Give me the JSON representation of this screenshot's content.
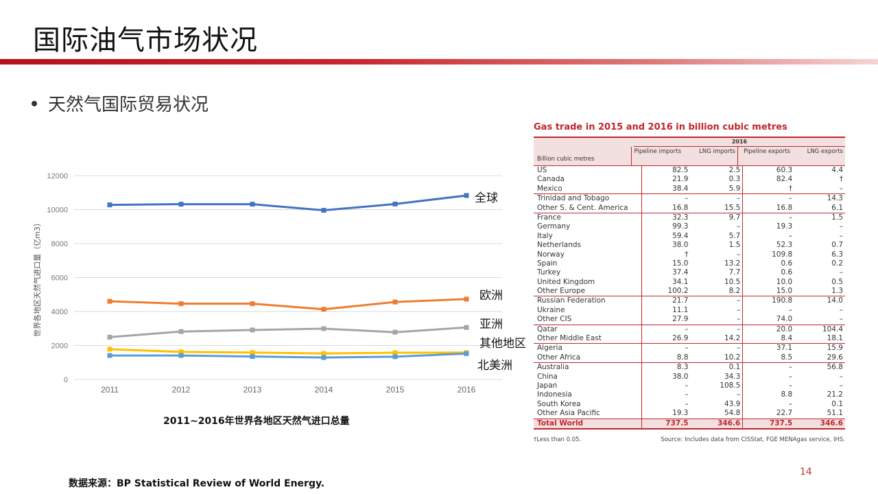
{
  "header": {
    "title": "国际油气市场状况"
  },
  "bullet": {
    "text": "天然气国际贸易状况"
  },
  "chart_caption": "2011~2016年世界各地区天然气进口总量",
  "source": "数据来源：BP Statistical Review of World Energy.",
  "page_number": "14",
  "chart_data": {
    "type": "line",
    "title": "2011~2016年世界各地区天然气进口总量",
    "ylabel": "世界各地区天然气进口量（亿m3）",
    "xlabel": "",
    "x": [
      "2011",
      "2012",
      "2013",
      "2014",
      "2015",
      "2016"
    ],
    "ylim": [
      0,
      12000
    ],
    "yticks": [
      0,
      2000,
      4000,
      6000,
      8000,
      10000,
      12000
    ],
    "grid": true,
    "series": [
      {
        "name": "全球",
        "color": "#4472c4",
        "values": [
          10280,
          10320,
          10320,
          9960,
          10330,
          10830
        ]
      },
      {
        "name": "欧洲",
        "color": "#ed7d31",
        "values": [
          4600,
          4460,
          4460,
          4130,
          4560,
          4730
        ]
      },
      {
        "name": "亚洲",
        "color": "#a5a5a5",
        "values": [
          2490,
          2820,
          2910,
          2990,
          2780,
          3060
        ]
      },
      {
        "name": "其他地区",
        "color": "#ffc000",
        "values": [
          1780,
          1620,
          1580,
          1530,
          1570,
          1580
        ]
      },
      {
        "name": "北美洲",
        "color": "#5b9bd5",
        "values": [
          1410,
          1410,
          1350,
          1290,
          1340,
          1520
        ]
      }
    ]
  },
  "table": {
    "title": "Gas trade in 2015 and 2016 in billion cubic metres",
    "year": "2016",
    "row_header": "Billion cubic metres",
    "columns": [
      "Pipeline imports",
      "LNG imports",
      "Pipeline exports",
      "LNG exports"
    ],
    "groups": [
      [
        [
          "US",
          "82.5",
          "2.5",
          "60.3",
          "4.4"
        ],
        [
          "Canada",
          "21.9",
          "0.3",
          "82.4",
          "†"
        ],
        [
          "Mexico",
          "38.4",
          "5.9",
          "†",
          "–"
        ]
      ],
      [
        [
          "Trinidad and Tobago",
          "–",
          "–",
          "–",
          "14.3"
        ],
        [
          "Other S. & Cent. America",
          "16.8",
          "15.5",
          "16.8",
          "6.1"
        ]
      ],
      [
        [
          "France",
          "32.3",
          "9.7",
          "–",
          "1.5"
        ],
        [
          "Germany",
          "99.3",
          "–",
          "19.3",
          "–"
        ],
        [
          "Italy",
          "59.4",
          "5.7",
          "–",
          "–"
        ],
        [
          "Netherlands",
          "38.0",
          "1.5",
          "52.3",
          "0.7"
        ],
        [
          "Norway",
          "†",
          "–",
          "109.8",
          "6.3"
        ],
        [
          "Spain",
          "15.0",
          "13.2",
          "0.6",
          "0.2"
        ],
        [
          "Turkey",
          "37.4",
          "7.7",
          "0.6",
          "–"
        ],
        [
          "United Kingdom",
          "34.1",
          "10.5",
          "10.0",
          "0.5"
        ],
        [
          "Other Europe",
          "100.2",
          "8.2",
          "15.0",
          "1.3"
        ]
      ],
      [
        [
          "Russian Federation",
          "21.7",
          "–",
          "190.8",
          "14.0"
        ],
        [
          "Ukraine",
          "11.1",
          "–",
          "–",
          "–"
        ],
        [
          "Other CIS",
          "27.9",
          "–",
          "74.0",
          "–"
        ]
      ],
      [
        [
          "Qatar",
          "–",
          "–",
          "20.0",
          "104.4"
        ],
        [
          "Other Middle East",
          "26.9",
          "14.2",
          "8.4",
          "18.1"
        ]
      ],
      [
        [
          "Algeria",
          "–",
          "–",
          "37.1",
          "15.9"
        ],
        [
          "Other Africa",
          "8.8",
          "10.2",
          "8.5",
          "29.6"
        ]
      ],
      [
        [
          "Australia",
          "8.3",
          "0.1",
          "–",
          "56.8"
        ],
        [
          "China",
          "38.0",
          "34.3",
          "–",
          "–"
        ],
        [
          "Japan",
          "–",
          "108.5",
          "–",
          "–"
        ],
        [
          "Indonesia",
          "–",
          "–",
          "8.8",
          "21.2"
        ],
        [
          "South Korea",
          "–",
          "43.9",
          "–",
          "0.1"
        ],
        [
          "Other Asia Pacific",
          "19.3",
          "54.8",
          "22.7",
          "51.1"
        ]
      ]
    ],
    "total": [
      "Total World",
      "737.5",
      "346.6",
      "737.5",
      "346.6"
    ],
    "footnote_left": "†Less than 0.05.",
    "footnote_right": "Source: Includes data from CISStat, FGE MENAgas service, IHS."
  }
}
